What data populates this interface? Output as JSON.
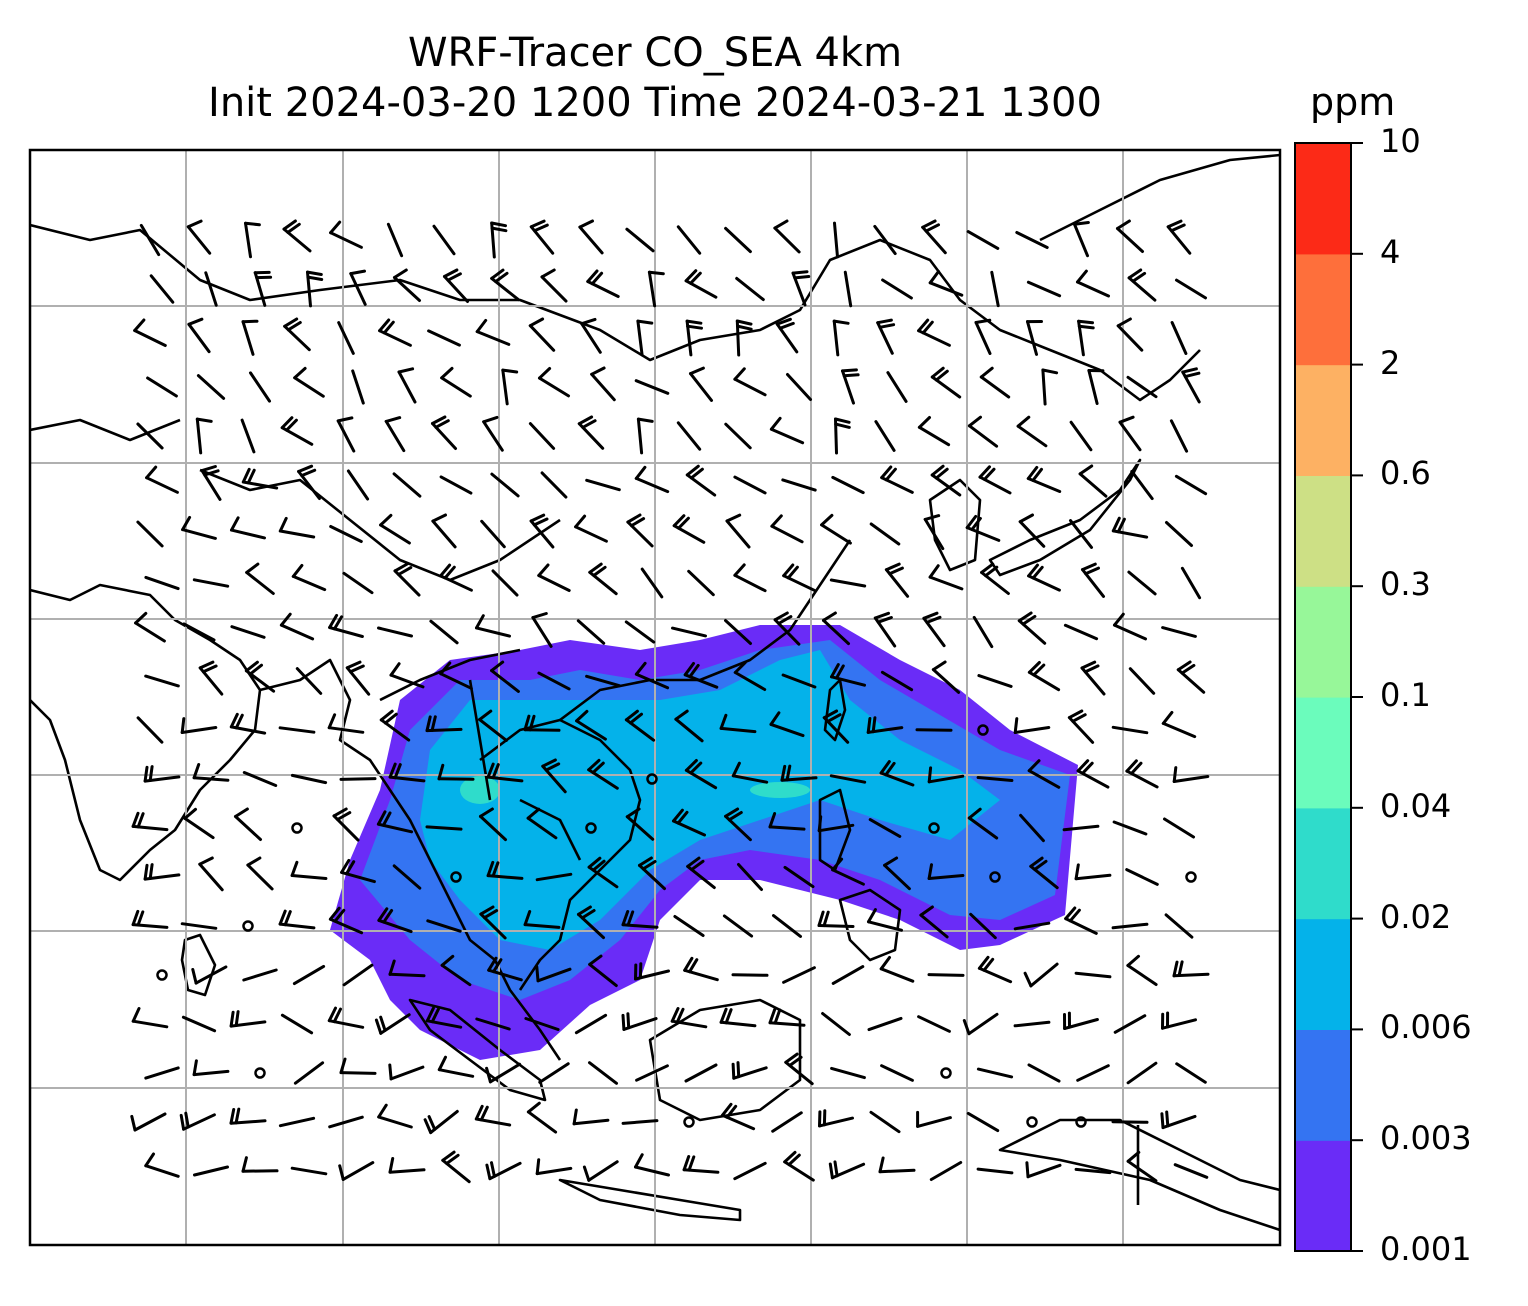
{
  "title": {
    "line1": "WRF-Tracer CO_SEA 4km",
    "line2": "Init 2024-03-20 1200 Time 2024-03-21 1300"
  },
  "colorbar": {
    "unit": "ppm",
    "levels": [
      "0.001",
      "0.003",
      "0.006",
      "0.02",
      "0.04",
      "0.1",
      "0.3",
      "0.6",
      "2",
      "4",
      "10"
    ],
    "colors": [
      "#6a2cf7",
      "#3474f2",
      "#04b2ea",
      "#2fdccb",
      "#6bfcbc",
      "#97f799",
      "#cde085",
      "#fdb163",
      "#fe6f3b",
      "#fc2a17"
    ]
  },
  "map": {
    "gridlines": true,
    "wind_barbs_shown": true,
    "coastlines_shown": true
  }
}
